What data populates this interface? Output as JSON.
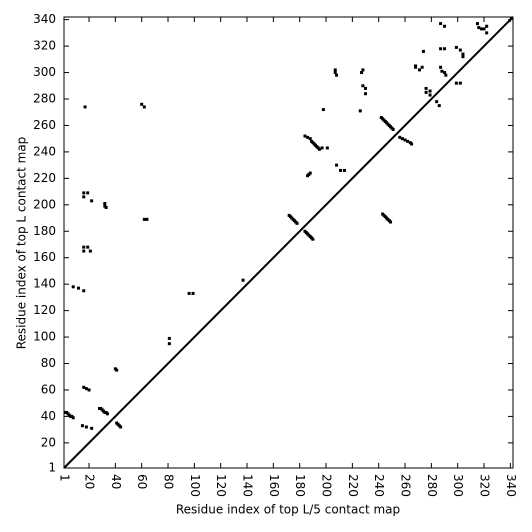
{
  "chart_data": {
    "type": "scatter",
    "xlabel": "Residue index of top L/5 contact map",
    "ylabel": "Residue index of top L contact map",
    "xlim": [
      1,
      342
    ],
    "ylim": [
      1,
      342
    ],
    "xticks": [
      1,
      20,
      40,
      60,
      80,
      100,
      120,
      140,
      160,
      180,
      200,
      220,
      240,
      260,
      280,
      300,
      320,
      340
    ],
    "yticks": [
      1,
      20,
      40,
      60,
      80,
      100,
      120,
      140,
      160,
      180,
      200,
      220,
      240,
      260,
      280,
      300,
      320,
      340
    ],
    "color": "#000000",
    "x": [
      2,
      3,
      4,
      5,
      6,
      7,
      8,
      16,
      18,
      20,
      15,
      18,
      22,
      28,
      29,
      30,
      31,
      32,
      33,
      34,
      40,
      41,
      41,
      42,
      43,
      44,
      8,
      12,
      16,
      16,
      16,
      19,
      21,
      16,
      19,
      16,
      22,
      32,
      32,
      33,
      62,
      64,
      60,
      62,
      81,
      81,
      96,
      99,
      17,
      137,
      198,
      207,
      207,
      208,
      227,
      228,
      228,
      230,
      230,
      226,
      208,
      211,
      214,
      268,
      271,
      268,
      273,
      276,
      279,
      276,
      279,
      274,
      287,
      290,
      287,
      290,
      287,
      288,
      290,
      291,
      299,
      302,
      304,
      304,
      299,
      302,
      315,
      316,
      318,
      320,
      322,
      322,
      284,
      286,
      197,
      201,
      172,
      173,
      174,
      175,
      176,
      177,
      178,
      184,
      185,
      186,
      187,
      188,
      189,
      190,
      184,
      186,
      188,
      189,
      190,
      191,
      192,
      193,
      194,
      195,
      186,
      187,
      188,
      242,
      243,
      244,
      245,
      246,
      247,
      248,
      249,
      250,
      251,
      243,
      244,
      245,
      246,
      247,
      248,
      249,
      256,
      258,
      260,
      262,
      264,
      265
    ],
    "values": [
      43,
      43,
      42,
      41,
      40,
      40,
      39,
      62,
      61,
      60,
      33,
      32,
      31,
      46,
      46,
      45,
      44,
      43,
      43,
      42,
      76,
      75,
      35,
      34,
      33,
      32,
      138,
      137,
      135,
      168,
      165,
      168,
      165,
      209,
      209,
      206,
      203,
      201,
      199,
      198,
      189,
      189,
      276,
      274,
      99,
      95,
      133,
      133,
      274,
      143,
      272,
      300,
      302,
      298,
      300,
      302,
      290,
      288,
      284,
      271,
      230,
      226,
      226,
      304,
      302,
      305,
      304,
      288,
      286,
      285,
      283,
      316,
      337,
      335,
      318,
      318,
      304,
      301,
      300,
      298,
      319,
      317,
      314,
      312,
      292,
      292,
      337,
      334,
      333,
      333,
      335,
      330,
      278,
      275,
      243,
      243,
      192,
      191,
      190,
      189,
      188,
      187,
      186,
      180,
      179,
      178,
      177,
      176,
      175,
      174,
      252,
      251,
      250,
      248,
      247,
      246,
      245,
      244,
      243,
      242,
      222,
      223,
      224,
      266,
      265,
      264,
      263,
      262,
      261,
      260,
      259,
      258,
      257,
      193,
      192,
      191,
      190,
      189,
      188,
      187,
      251,
      250,
      249,
      248,
      247,
      246
    ]
  }
}
